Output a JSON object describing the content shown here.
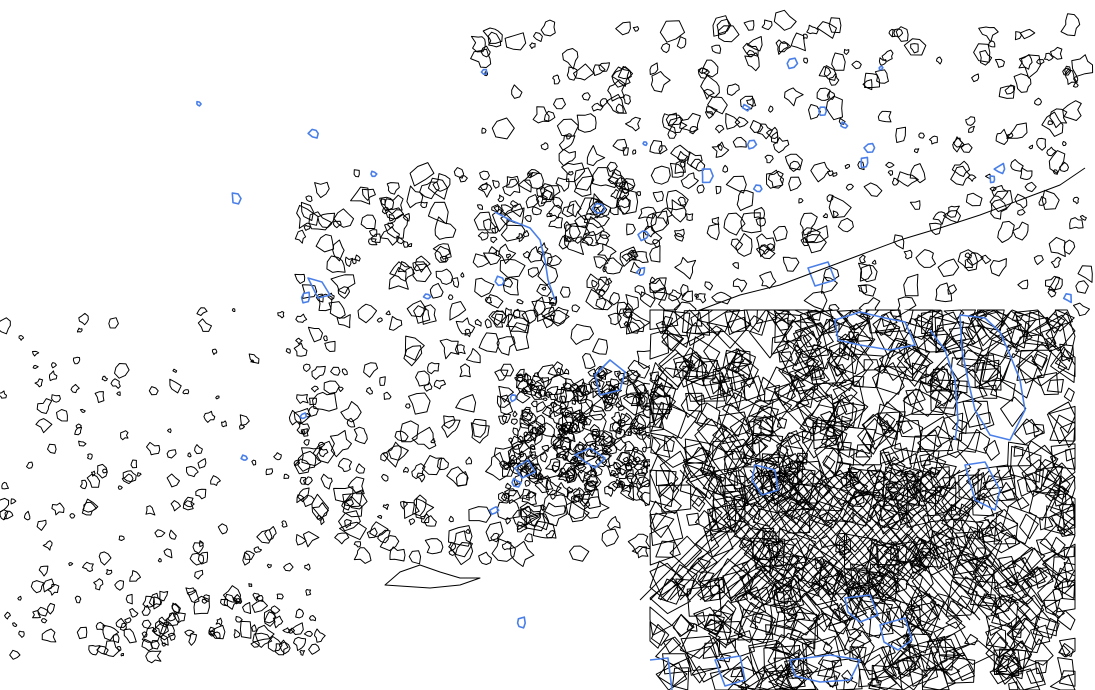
{
  "map": {
    "styles": {
      "boundary_color": "#000000",
      "highlight_color": "#4a7fe8",
      "background_color": "#ffffff"
    },
    "inset": {
      "description_visible": false
    }
  }
}
